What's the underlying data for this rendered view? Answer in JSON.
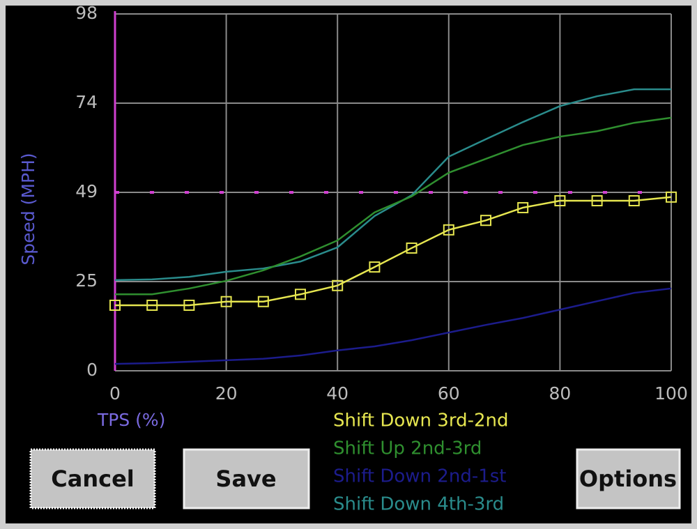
{
  "chart_data": {
    "type": "line",
    "y_label": "Speed (MPH)",
    "x_label": "TPS (%)",
    "x": [
      0,
      6.67,
      13.33,
      20,
      26.67,
      33.33,
      40,
      46.67,
      53.33,
      60,
      66.67,
      73.33,
      80,
      86.67,
      93.33,
      100
    ],
    "series": [
      {
        "name": "Shift Down 3rd-2nd",
        "color": "#e6e650",
        "marker": "square",
        "values": [
          18,
          18,
          18,
          19,
          19,
          21,
          23.4,
          28.5,
          33.7,
          38.7,
          41.3,
          44.8,
          46.7,
          46.7,
          46.7,
          47.7
        ]
      },
      {
        "name": "Shift Up 2nd-3rd",
        "color": "#2f8f2f",
        "values": [
          21,
          21,
          22.6,
          24.7,
          27.6,
          31.4,
          35.8,
          43.5,
          47.9,
          54.4,
          58.2,
          62,
          64.3,
          65.8,
          68.1,
          69.5
        ]
      },
      {
        "name": "Shift Down 2nd-1st",
        "color": "#1c1c8c",
        "values": [
          1.9,
          2.1,
          2.5,
          2.9,
          3.3,
          4.2,
          5.6,
          6.7,
          8.4,
          10.5,
          12.6,
          14.5,
          16.8,
          19.1,
          21.4,
          22.6
        ]
      },
      {
        "name": "Shift Down 4th-3rd",
        "color": "#2a8c8c",
        "values": [
          24.9,
          25.1,
          25.8,
          27.2,
          28.1,
          30,
          33.9,
          42.5,
          48.2,
          58.8,
          63.6,
          68.3,
          72.7,
          75.4,
          77.3,
          77.3
        ]
      }
    ],
    "xlim": [
      0,
      100
    ],
    "xticks": [
      0,
      20,
      40,
      60,
      80,
      100
    ],
    "ylim": [
      0,
      98
    ],
    "yticks": [
      0,
      {
        "value": 24.5,
        "label": "25"
      },
      49,
      {
        "value": 73.5,
        "label": "74"
      },
      98
    ],
    "grid": true,
    "reference_y": 49,
    "reference_x": 0,
    "reference_color": "#d040d0"
  },
  "ui": {
    "buttons": [
      "Cancel",
      "Save",
      "Options"
    ]
  }
}
